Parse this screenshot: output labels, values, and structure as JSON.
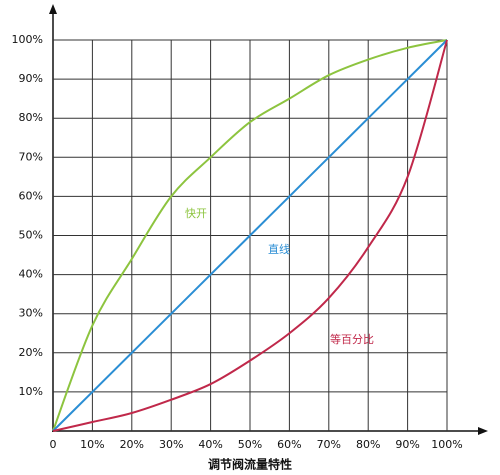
{
  "chart_data": {
    "type": "line",
    "title": "调节阀流量特性",
    "x": [
      0,
      10,
      20,
      30,
      40,
      50,
      60,
      70,
      80,
      90,
      100
    ],
    "series": [
      {
        "name": "快开",
        "color": "#8dc43f",
        "values": [
          0,
          27,
          44,
          60,
          70,
          79,
          85,
          91,
          95,
          98,
          100
        ]
      },
      {
        "name": "直线",
        "color": "#2b8ed4",
        "values": [
          0,
          10,
          20,
          30,
          40,
          50,
          60,
          70,
          80,
          90,
          100
        ]
      },
      {
        "name": "等百分比",
        "color": "#c0284a",
        "values": [
          0,
          2.3,
          4.6,
          8,
          12,
          18,
          25,
          34,
          47,
          65,
          100
        ]
      }
    ],
    "xlim": [
      0,
      100
    ],
    "xticks": [
      0,
      {
        "value": 10,
        "label": "10%"
      },
      {
        "value": 20,
        "label": "20%"
      },
      {
        "value": 30,
        "label": "30%"
      },
      {
        "value": 40,
        "label": "40%"
      },
      {
        "value": 50,
        "label": "50%"
      },
      {
        "value": 60,
        "label": "60%"
      },
      {
        "value": 70,
        "label": "70%"
      },
      {
        "value": 80,
        "label": "80%"
      },
      {
        "value": 90,
        "label": "90%"
      },
      {
        "value": 100,
        "label": "100%"
      }
    ],
    "ylim": [
      0,
      100
    ],
    "yticks": [
      {
        "value": 10,
        "label": "10%"
      },
      {
        "value": 20,
        "label": "20%"
      },
      {
        "value": 30,
        "label": "30%"
      },
      {
        "value": 40,
        "label": "40%"
      },
      {
        "value": 50,
        "label": "50%"
      },
      {
        "value": 60,
        "label": "60%"
      },
      {
        "value": 70,
        "label": "70%"
      },
      {
        "value": 80,
        "label": "80%"
      },
      {
        "value": 90,
        "label": "90%"
      },
      {
        "value": 100,
        "label": "100%"
      }
    ],
    "grid": true
  }
}
